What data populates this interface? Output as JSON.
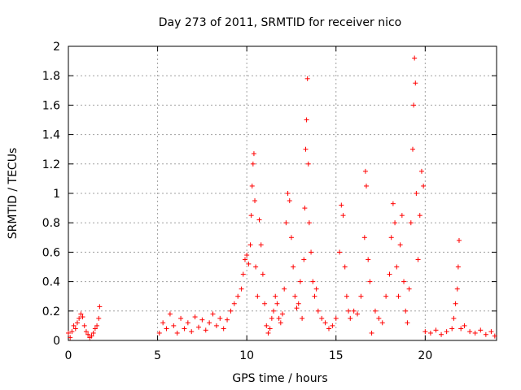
{
  "chart_data": {
    "type": "scatter",
    "title": "Day 273 of 2011, SRMTID for receiver nico",
    "xlabel": "GPS time / hours",
    "ylabel": "SRMTID / TECUs",
    "xlim": [
      0,
      24
    ],
    "ylim": [
      0,
      2
    ],
    "xticks": [
      0,
      5,
      10,
      15,
      20
    ],
    "yticks": [
      0,
      0.2,
      0.4,
      0.6,
      0.8,
      1,
      1.2,
      1.4,
      1.6,
      1.8,
      2
    ],
    "ytick_labels": [
      "0",
      "0.2",
      "0.4",
      "0.6",
      "0.8",
      "1",
      "1.2",
      "1.4",
      "1.6",
      "1.8",
      "2"
    ],
    "grid": true,
    "marker": "+",
    "series": [
      {
        "name": "SRMTID",
        "color": "#ff0000",
        "x": [
          0.0,
          0.1,
          0.2,
          0.3,
          0.4,
          0.5,
          0.6,
          0.7,
          0.8,
          0.9,
          1.0,
          1.1,
          1.2,
          1.3,
          1.4,
          1.5,
          1.6,
          1.7,
          1.75,
          5.1,
          5.3,
          5.5,
          5.7,
          5.9,
          6.1,
          6.3,
          6.5,
          6.7,
          6.9,
          7.1,
          7.3,
          7.5,
          7.7,
          7.9,
          8.1,
          8.3,
          8.5,
          8.7,
          8.9,
          9.1,
          9.3,
          9.5,
          9.7,
          9.8,
          9.9,
          10.0,
          10.1,
          10.2,
          10.25,
          10.3,
          10.35,
          10.4,
          10.45,
          10.5,
          10.6,
          10.7,
          10.8,
          10.9,
          11.0,
          11.1,
          11.2,
          11.3,
          11.4,
          11.5,
          11.6,
          11.7,
          11.8,
          11.9,
          12.0,
          12.1,
          12.2,
          12.3,
          12.4,
          12.5,
          12.6,
          12.7,
          12.8,
          12.9,
          13.0,
          13.1,
          13.2,
          13.25,
          13.3,
          13.35,
          13.4,
          13.45,
          13.5,
          13.6,
          13.7,
          13.8,
          13.9,
          14.0,
          14.2,
          14.4,
          14.6,
          14.8,
          15.0,
          15.2,
          15.3,
          15.4,
          15.5,
          15.6,
          15.7,
          15.8,
          16.0,
          16.2,
          16.4,
          16.6,
          16.65,
          16.7,
          16.8,
          16.9,
          17.0,
          17.2,
          17.4,
          17.6,
          17.8,
          18.0,
          18.1,
          18.2,
          18.3,
          18.4,
          18.5,
          18.6,
          18.7,
          18.8,
          18.9,
          19.0,
          19.1,
          19.2,
          19.3,
          19.35,
          19.4,
          19.45,
          19.5,
          19.6,
          19.7,
          19.8,
          19.9,
          20.0,
          20.3,
          20.6,
          20.9,
          21.2,
          21.5,
          21.6,
          21.7,
          21.8,
          21.85,
          21.9,
          22.0,
          22.2,
          22.5,
          22.8,
          23.1,
          23.4,
          23.7,
          23.9
        ],
        "y": [
          0.05,
          0.02,
          0.06,
          0.1,
          0.08,
          0.12,
          0.15,
          0.18,
          0.16,
          0.1,
          0.06,
          0.04,
          0.02,
          0.03,
          0.05,
          0.08,
          0.1,
          0.15,
          0.23,
          0.05,
          0.12,
          0.08,
          0.18,
          0.1,
          0.05,
          0.15,
          0.08,
          0.12,
          0.06,
          0.16,
          0.09,
          0.14,
          0.07,
          0.12,
          0.18,
          0.1,
          0.15,
          0.08,
          0.14,
          0.2,
          0.25,
          0.3,
          0.35,
          0.45,
          0.55,
          0.58,
          0.52,
          0.65,
          0.85,
          1.05,
          1.2,
          1.27,
          0.95,
          0.5,
          0.3,
          0.82,
          0.65,
          0.45,
          0.25,
          0.1,
          0.05,
          0.08,
          0.15,
          0.2,
          0.3,
          0.25,
          0.15,
          0.12,
          0.18,
          0.35,
          0.8,
          1.0,
          0.95,
          0.7,
          0.5,
          0.3,
          0.22,
          0.25,
          0.4,
          0.15,
          0.55,
          0.9,
          1.3,
          1.5,
          1.78,
          1.2,
          0.8,
          0.6,
          0.4,
          0.3,
          0.35,
          0.2,
          0.15,
          0.12,
          0.08,
          0.1,
          0.15,
          0.6,
          0.92,
          0.85,
          0.5,
          0.3,
          0.2,
          0.15,
          0.2,
          0.18,
          0.3,
          0.7,
          1.15,
          1.05,
          0.55,
          0.4,
          0.05,
          0.2,
          0.15,
          0.12,
          0.3,
          0.45,
          0.7,
          0.93,
          0.8,
          0.5,
          0.3,
          0.65,
          0.85,
          0.4,
          0.2,
          0.12,
          0.35,
          0.8,
          1.3,
          1.6,
          1.92,
          1.75,
          1.0,
          0.55,
          0.85,
          1.15,
          1.05,
          0.06,
          0.05,
          0.07,
          0.04,
          0.06,
          0.08,
          0.15,
          0.25,
          0.35,
          0.5,
          0.68,
          0.08,
          0.1,
          0.06,
          0.05,
          0.07,
          0.04,
          0.06,
          0.03
        ]
      }
    ]
  }
}
